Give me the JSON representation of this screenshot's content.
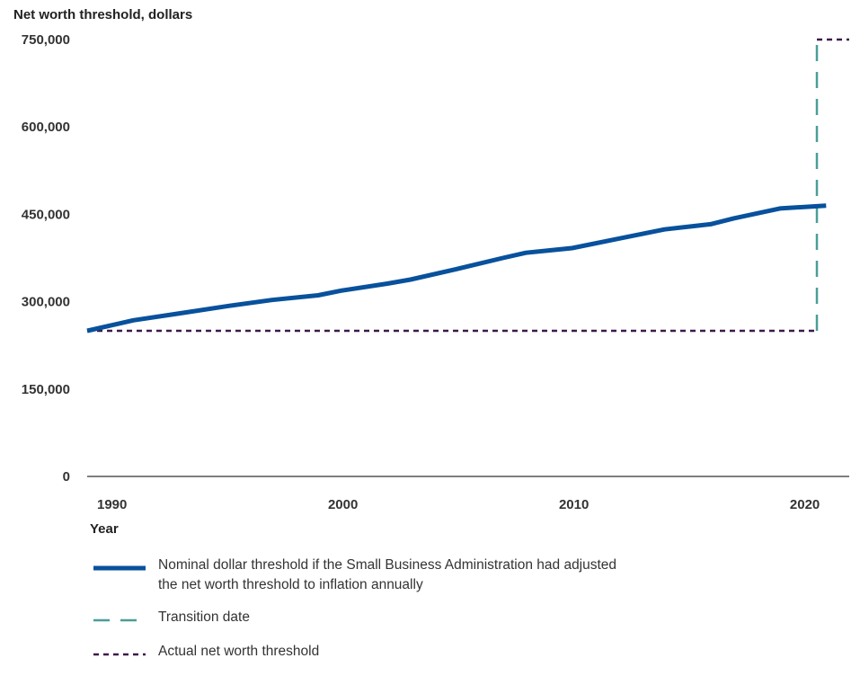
{
  "chart_data": {
    "type": "line",
    "ylabel": "Net worth threshold, dollars",
    "xlabel": "Year",
    "ylim": [
      0,
      750000
    ],
    "xlim": [
      1989,
      2022
    ],
    "y_ticks": [
      0,
      150000,
      300000,
      450000,
      600000,
      750000
    ],
    "y_tick_labels": [
      "0",
      "150,000",
      "300,000",
      "450,000",
      "600,000",
      "750,000"
    ],
    "x_ticks": [
      1990,
      2000,
      2010,
      2020
    ],
    "x_tick_labels": [
      "1990",
      "2000",
      "2010",
      "2020"
    ],
    "grid": false,
    "legend_position": "bottom",
    "series": [
      {
        "name": "Nominal dollar threshold if the Small Business Administration had adjusted the net worth threshold to inflation annually",
        "style": "solid",
        "color": "#08519c",
        "x": [
          1989,
          1991,
          1993,
          1995,
          1997,
          1999,
          2000,
          2002,
          2003,
          2005,
          2007,
          2008,
          2010,
          2012,
          2014,
          2016,
          2017,
          2019,
          2021
        ],
        "y": [
          250000,
          268000,
          280000,
          292000,
          303000,
          311000,
          319000,
          331000,
          338000,
          356000,
          375000,
          384000,
          392000,
          408000,
          424000,
          433000,
          443000,
          460000,
          465000
        ]
      },
      {
        "name": "Transition date",
        "style": "dashed",
        "color": "#4a9e98",
        "x": [
          2020.6,
          2020.6
        ],
        "y": [
          250000,
          750000
        ]
      },
      {
        "name": "Actual net worth threshold",
        "style": "dotted",
        "color": "#3d1a4a",
        "segments": [
          {
            "x": [
              1989,
              2020.6
            ],
            "y": [
              250000,
              250000
            ]
          },
          {
            "x": [
              2020.6,
              2022
            ],
            "y": [
              750000,
              750000
            ]
          }
        ]
      }
    ]
  }
}
